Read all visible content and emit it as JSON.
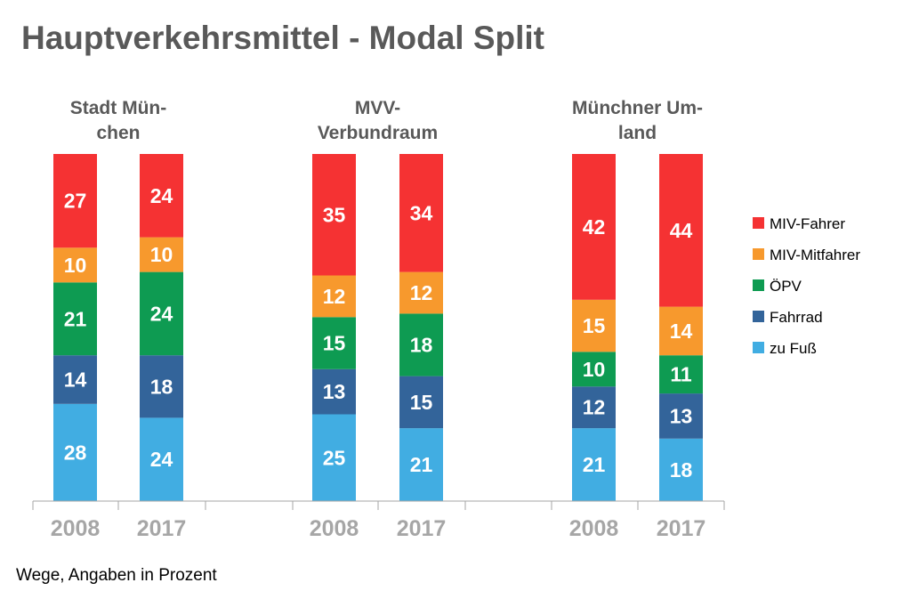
{
  "title": "Hauptverkehrsmittel - Modal Split",
  "footnote": "Wege, Angaben in Prozent",
  "chart_data": {
    "type": "bar",
    "stacked": true,
    "groups": [
      {
        "title_lines": [
          "Stadt Mün-",
          "chen"
        ],
        "categories": [
          "2008",
          "2017"
        ]
      },
      {
        "title_lines": [
          "MVV-",
          "Verbundraum"
        ],
        "categories": [
          "2008",
          "2017"
        ]
      },
      {
        "title_lines": [
          "Münchner Um-",
          "land"
        ],
        "categories": [
          "2008",
          "2017"
        ]
      }
    ],
    "series": [
      {
        "name": "zu Fuß",
        "color": "#41ade2",
        "values": [
          [
            28,
            24
          ],
          [
            25,
            21
          ],
          [
            21,
            18
          ]
        ]
      },
      {
        "name": "Fahrrad",
        "color": "#33649a",
        "values": [
          [
            14,
            18
          ],
          [
            13,
            15
          ],
          [
            12,
            13
          ]
        ]
      },
      {
        "name": "ÖPV",
        "color": "#0e9b52",
        "values": [
          [
            21,
            24
          ],
          [
            15,
            18
          ],
          [
            10,
            11
          ]
        ]
      },
      {
        "name": "MIV-Mitfahrer",
        "color": "#f7992d",
        "values": [
          [
            10,
            10
          ],
          [
            12,
            12
          ],
          [
            15,
            14
          ]
        ]
      },
      {
        "name": "MIV-Fahrer",
        "color": "#f53233",
        "values": [
          [
            27,
            24
          ],
          [
            35,
            34
          ],
          [
            42,
            44
          ]
        ]
      }
    ],
    "legend_order": [
      "MIV-Fahrer",
      "MIV-Mitfahrer",
      "ÖPV",
      "Fahrrad",
      "zu Fuß"
    ],
    "legend_position": "right",
    "ylim": [
      0,
      100
    ],
    "grid": false
  }
}
